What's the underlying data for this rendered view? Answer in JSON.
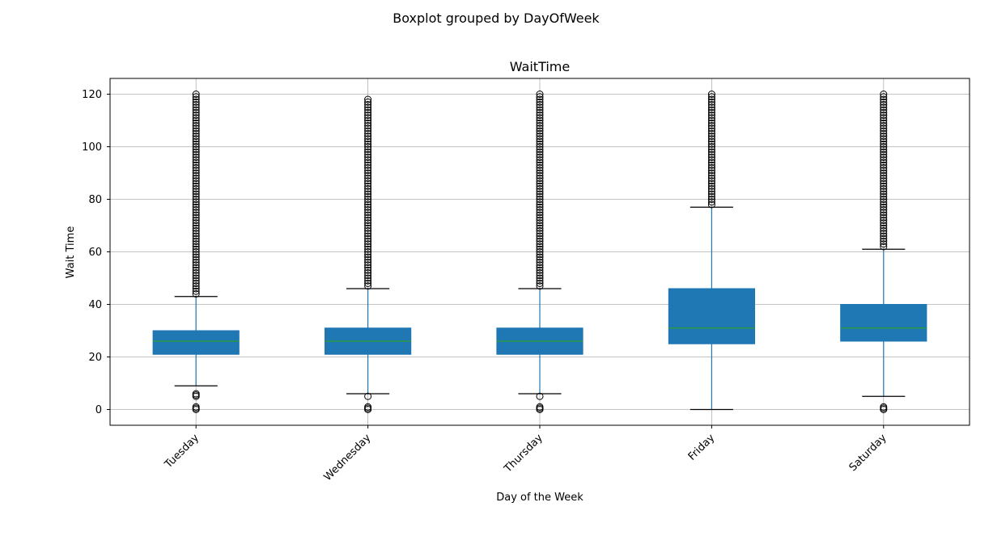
{
  "chart_data": {
    "type": "boxplot",
    "suptitle": "Boxplot grouped by DayOfWeek",
    "title": "WaitTime",
    "xlabel": "Day of the Week",
    "ylabel": "Wait Time",
    "ylim": [
      -6,
      126
    ],
    "yticks": [
      0,
      20,
      40,
      60,
      80,
      100,
      120
    ],
    "grid": true,
    "colors": {
      "box": "#1f77b4",
      "median": "#2ca02c",
      "whisker": "#1f77b4",
      "cap": "#000000",
      "flier": "#000000",
      "grid": "#b0b0b0"
    },
    "categories": [
      "Tuesday",
      "Wednesday",
      "Thursday",
      "Friday",
      "Saturday"
    ],
    "boxes": [
      {
        "q1": 21,
        "median": 26,
        "q3": 30,
        "whislo": 9,
        "whishi": 43,
        "fliers_low": [
          0,
          0.5,
          1,
          5,
          5.5,
          6
        ],
        "fliers_high_range": [
          44,
          120
        ]
      },
      {
        "q1": 21,
        "median": 26,
        "q3": 31,
        "whislo": 6,
        "whishi": 46,
        "fliers_low": [
          0,
          0.5,
          1,
          5
        ],
        "fliers_high_range": [
          47,
          118
        ]
      },
      {
        "q1": 21,
        "median": 26,
        "q3": 31,
        "whislo": 6,
        "whishi": 46,
        "fliers_low": [
          0,
          0.5,
          1,
          5
        ],
        "fliers_high_range": [
          47,
          120
        ]
      },
      {
        "q1": 25,
        "median": 31,
        "q3": 46,
        "whislo": 0,
        "whishi": 77,
        "fliers_low": [],
        "fliers_high_range": [
          78,
          120
        ]
      },
      {
        "q1": 26,
        "median": 31,
        "q3": 40,
        "whislo": 5,
        "whishi": 61,
        "fliers_low": [
          0,
          0.5,
          1
        ],
        "fliers_high_range": [
          62,
          120
        ]
      }
    ]
  }
}
